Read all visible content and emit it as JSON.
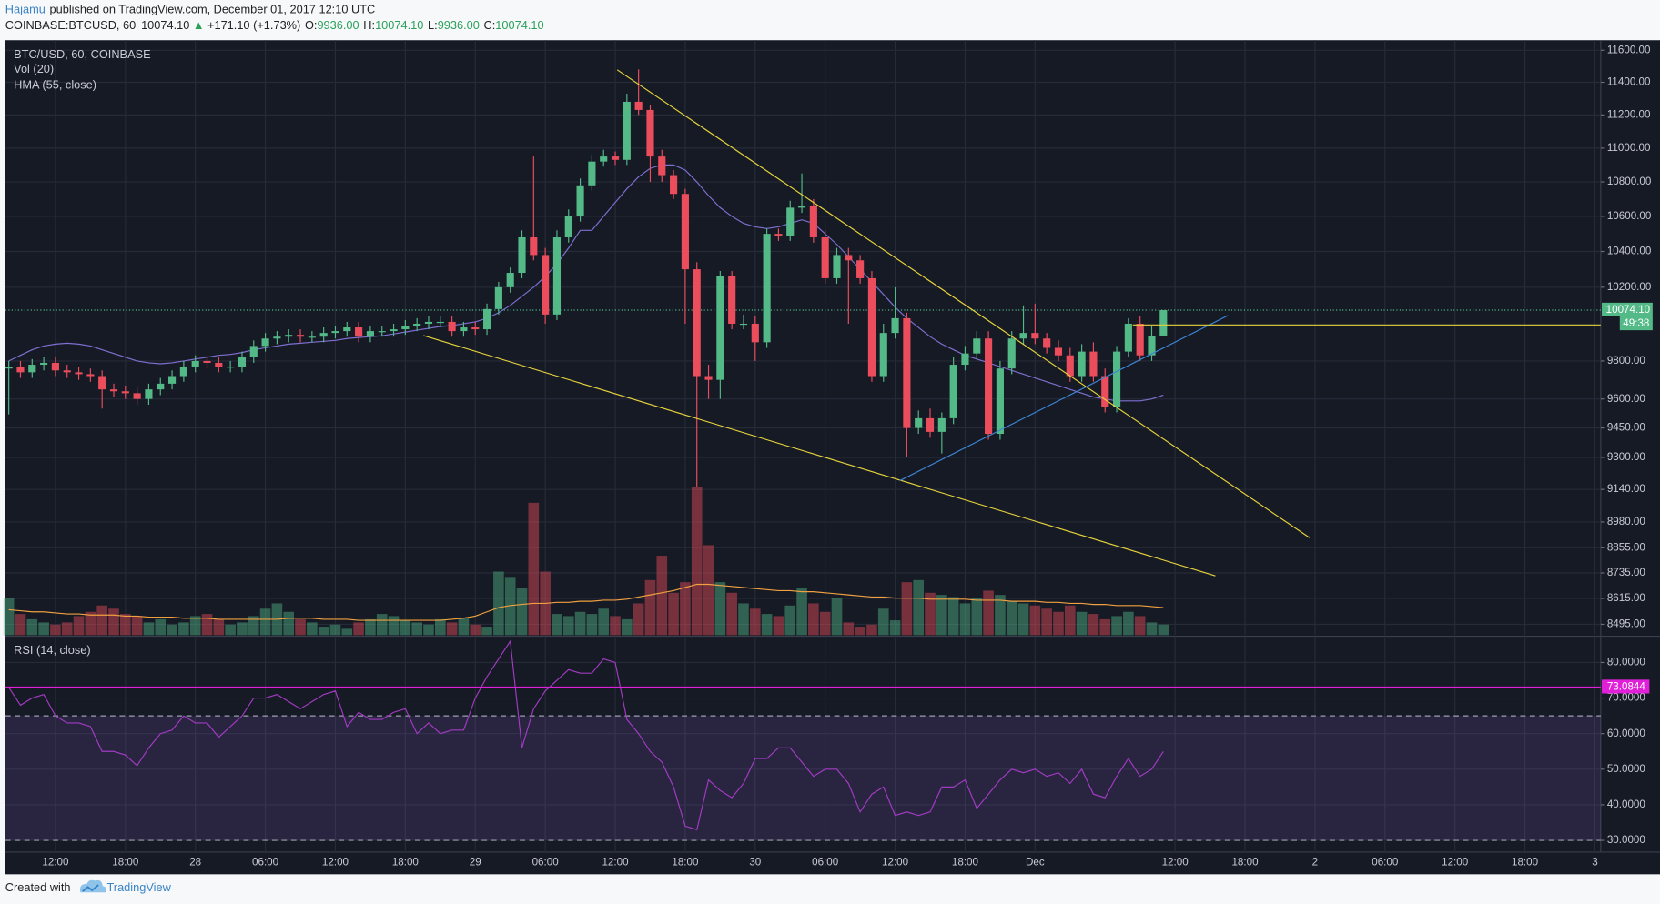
{
  "header": {
    "author": "Hajamu",
    "published": "published on TradingView.com, December 01, 2017 12:10 UTC"
  },
  "symbol_line": {
    "symbol": "COINBASE:BTCUSD, 60",
    "last": "10074.10",
    "arrow": "▲",
    "change": "+171.10 (+1.73%)",
    "open_label": "O:",
    "open": "9936.00",
    "high_label": "H:",
    "high": "10074.10",
    "low_label": "L:",
    "low": "9936.00",
    "close_label": "C:",
    "close": "10074.10"
  },
  "footer": {
    "created": "Created with",
    "brand": "TradingView"
  },
  "chart_data": [
    {
      "type": "candlestick",
      "title": "BTC/USD, 60, COINBASE",
      "log": true,
      "grid": true,
      "up_color": "#53b987",
      "down_color": "#eb4d5c",
      "x": [
        8,
        9,
        10,
        11,
        12,
        13,
        14,
        15,
        16,
        17,
        18,
        19,
        20,
        21,
        22,
        23,
        24,
        25,
        26,
        27,
        28,
        29,
        30,
        31,
        32,
        33,
        34,
        35,
        36,
        37,
        38,
        39,
        40,
        41,
        42,
        43,
        44,
        45,
        46,
        47,
        48,
        49,
        50,
        51,
        52,
        53,
        54,
        55,
        56,
        57,
        58,
        59,
        60,
        61,
        62,
        63,
        64,
        65,
        66,
        67,
        68,
        69,
        70,
        71,
        72,
        73,
        74,
        75,
        76,
        77,
        78,
        79,
        80,
        81,
        82,
        83,
        84,
        85,
        86,
        87,
        88,
        89,
        90,
        91,
        92,
        93,
        94,
        95,
        96,
        97,
        98,
        99,
        100,
        101,
        102,
        103,
        104,
        105,
        106,
        107
      ],
      "open": [
        9760,
        9770,
        9740,
        9780,
        9790,
        9750,
        9740,
        9730,
        9720,
        9650,
        9640,
        9630,
        9600,
        9650,
        9680,
        9720,
        9770,
        9800,
        9790,
        9770,
        9770,
        9820,
        9880,
        9920,
        9930,
        9940,
        9930,
        9930,
        9950,
        9960,
        9980,
        9930,
        9960,
        9960,
        9970,
        9990,
        10000,
        10010,
        10010,
        9960,
        9980,
        9970,
        10080,
        10200,
        10280,
        10480,
        10380,
        10050,
        10480,
        10600,
        10780,
        10920,
        10950,
        10930,
        11280,
        11230,
        10950,
        10840,
        10730,
        10300,
        9720,
        9700,
        10260,
        10000,
        10000,
        9900,
        10500,
        10490,
        10650,
        10660,
        10480,
        10250,
        10380,
        10350,
        10250,
        9720,
        9950,
        10030,
        9450,
        9500,
        9430,
        9500,
        9780,
        9840,
        9920,
        9420,
        9760,
        9920,
        9950,
        9920,
        9870,
        9830,
        9720,
        9850,
        9720,
        9560,
        9850,
        10000,
        9830,
        9936
      ],
      "high": [
        9800,
        9800,
        9810,
        9820,
        9820,
        9780,
        9770,
        9760,
        9750,
        9680,
        9670,
        9660,
        9680,
        9710,
        9750,
        9800,
        9830,
        9830,
        9820,
        9800,
        9850,
        9910,
        9950,
        9960,
        9970,
        9970,
        9960,
        9980,
        9990,
        10010,
        10010,
        9990,
        9990,
        10000,
        10020,
        10030,
        10040,
        10040,
        10040,
        10010,
        10010,
        10110,
        10230,
        10310,
        10520,
        10950,
        10420,
        10520,
        10640,
        10820,
        10960,
        10990,
        10980,
        11330,
        11480,
        11260,
        10990,
        10870,
        10760,
        10340,
        9780,
        10290,
        10290,
        10050,
        10040,
        10530,
        10530,
        10690,
        10850,
        10700,
        10520,
        10420,
        10420,
        10380,
        10290,
        10000,
        10200,
        10060,
        9540,
        9550,
        9530,
        9820,
        9880,
        9960,
        9960,
        9800,
        9960,
        10100,
        10110,
        9950,
        9910,
        9870,
        9890,
        9900,
        9760,
        9880,
        10030,
        10040,
        9990,
        10074.1
      ],
      "low": [
        9520,
        9710,
        9710,
        9750,
        9720,
        9710,
        9700,
        9690,
        9550,
        9610,
        9600,
        9570,
        9570,
        9620,
        9650,
        9690,
        9740,
        9760,
        9740,
        9740,
        9740,
        9790,
        9850,
        9890,
        9900,
        9900,
        9900,
        9900,
        9920,
        9930,
        9900,
        9900,
        9930,
        9930,
        9940,
        9960,
        9970,
        9980,
        9930,
        9930,
        9940,
        9940,
        10050,
        10170,
        10250,
        10350,
        10000,
        10020,
        10450,
        10570,
        10750,
        10890,
        10900,
        10900,
        11200,
        10800,
        10800,
        10700,
        10000,
        9150,
        9600,
        9600,
        9970,
        9970,
        9800,
        9870,
        10460,
        10460,
        10620,
        10450,
        10220,
        10220,
        10000,
        10220,
        9690,
        9690,
        9920,
        9300,
        9420,
        9400,
        9320,
        9470,
        9750,
        9810,
        9390,
        9390,
        9730,
        9890,
        9890,
        9840,
        9800,
        9690,
        9690,
        9690,
        9530,
        9530,
        9820,
        9800,
        9800,
        9936
      ],
      "close": [
        9770,
        9740,
        9780,
        9790,
        9750,
        9740,
        9730,
        9720,
        9650,
        9640,
        9630,
        9600,
        9650,
        9680,
        9720,
        9770,
        9800,
        9790,
        9770,
        9770,
        9820,
        9880,
        9920,
        9930,
        9940,
        9930,
        9930,
        9950,
        9960,
        9980,
        9930,
        9960,
        9960,
        9970,
        9990,
        10000,
        10010,
        10010,
        9960,
        9980,
        9970,
        10080,
        10200,
        10280,
        10480,
        10380,
        10050,
        10480,
        10600,
        10780,
        10920,
        10950,
        10930,
        11280,
        11230,
        10950,
        10840,
        10730,
        10300,
        9720,
        9700,
        10260,
        10000,
        10000,
        9900,
        10500,
        10490,
        10650,
        10660,
        10480,
        10250,
        10380,
        10350,
        10250,
        9720,
        9950,
        10030,
        9450,
        9500,
        9430,
        9500,
        9780,
        9840,
        9920,
        9420,
        9760,
        9920,
        9950,
        9920,
        9870,
        9830,
        9720,
        9850,
        9720,
        9560,
        9850,
        10000,
        9830,
        9936,
        10074.1
      ],
      "price_label": "10074.10",
      "countdown": "49:38",
      "series": [
        {
          "name": "HMA (55, close)",
          "color": "#7e6fd0",
          "values": [
            9800,
            9830,
            9860,
            9880,
            9890,
            9895,
            9890,
            9880,
            9860,
            9840,
            9820,
            9800,
            9790,
            9785,
            9790,
            9800,
            9810,
            9820,
            9830,
            9835,
            9845,
            9860,
            9870,
            9880,
            9890,
            9895,
            9900,
            9905,
            9910,
            9920,
            9925,
            9930,
            9935,
            9945,
            9955,
            9965,
            9975,
            9985,
            9990,
            10000,
            10010,
            10030,
            10060,
            10100,
            10150,
            10200,
            10260,
            10330,
            10420,
            10520,
            10520,
            10600,
            10680,
            10760,
            10830,
            10880,
            10900,
            10900,
            10870,
            10800,
            10720,
            10650,
            10600,
            10560,
            10540,
            10530,
            10540,
            10560,
            10580,
            10560,
            10500,
            10440,
            10370,
            10300,
            10230,
            10160,
            10090,
            10030,
            9980,
            9930,
            9890,
            9860,
            9830,
            9810,
            9790,
            9770,
            9750,
            9730,
            9710,
            9690,
            9670,
            9650,
            9630,
            9610,
            9600,
            9590,
            9590,
            9590,
            9600,
            9620
          ]
        }
      ],
      "ylim": [
        8450,
        11650
      ],
      "yticks": [
        {
          "value": 8495,
          "label": "8495.00"
        },
        {
          "value": 8615,
          "label": "8615.00"
        },
        {
          "value": 8735,
          "label": "8735.00"
        },
        {
          "value": 8855,
          "label": "8855.00"
        },
        {
          "value": 8980,
          "label": "8980.00"
        },
        {
          "value": 9140,
          "label": "9140.00"
        },
        {
          "value": 9300,
          "label": "9300.00"
        },
        {
          "value": 9450,
          "label": "9450.00"
        },
        {
          "value": 9600,
          "label": "9600.00"
        },
        {
          "value": 9800,
          "label": "9800.00"
        },
        {
          "value": 10200,
          "label": "10200.00"
        },
        {
          "value": 10400,
          "label": "10400.00"
        },
        {
          "value": 10600,
          "label": "10600.00"
        },
        {
          "value": 10800,
          "label": "10800.00"
        },
        {
          "value": 11000,
          "label": "11000.00"
        },
        {
          "value": 11200,
          "label": "11200.00"
        },
        {
          "value": 11400,
          "label": "11400.00"
        },
        {
          "value": 11600,
          "label": "11600.00"
        }
      ],
      "xlim": [
        7.7,
        144.5
      ],
      "xticks": [
        {
          "value": 12,
          "label": "12:00"
        },
        {
          "value": 18,
          "label": "18:00"
        },
        {
          "value": 24,
          "label": "28"
        },
        {
          "value": 30,
          "label": "06:00"
        },
        {
          "value": 36,
          "label": "12:00"
        },
        {
          "value": 42,
          "label": "18:00"
        },
        {
          "value": 48,
          "label": "29"
        },
        {
          "value": 54,
          "label": "06:00"
        },
        {
          "value": 60,
          "label": "12:00"
        },
        {
          "value": 66,
          "label": "18:00"
        },
        {
          "value": 72,
          "label": "30"
        },
        {
          "value": 78,
          "label": "06:00"
        },
        {
          "value": 84,
          "label": "12:00"
        },
        {
          "value": 90,
          "label": "18:00"
        },
        {
          "value": 96,
          "label": "Dec"
        },
        {
          "value": 108,
          "label": "12:00"
        },
        {
          "value": 114,
          "label": "18:00"
        },
        {
          "value": 120,
          "label": "2"
        },
        {
          "value": 126,
          "label": "06:00"
        },
        {
          "value": 132,
          "label": "12:00"
        },
        {
          "value": 138,
          "label": "18:00"
        },
        {
          "value": 144,
          "label": "3"
        }
      ]
    },
    {
      "type": "bar",
      "title": "Vol (20)",
      "ma_color": "#f0a040",
      "ylim": [
        0,
        150
      ],
      "values": [
        35,
        20,
        15,
        12,
        10,
        12,
        18,
        22,
        28,
        25,
        20,
        18,
        12,
        15,
        10,
        12,
        18,
        20,
        15,
        10,
        12,
        18,
        25,
        30,
        22,
        15,
        12,
        8,
        10,
        6,
        12,
        15,
        20,
        18,
        14,
        12,
        10,
        15,
        12,
        16,
        10,
        8,
        60,
        55,
        45,
        125,
        60,
        20,
        18,
        22,
        20,
        25,
        18,
        15,
        30,
        52,
        75,
        40,
        50,
        140,
        85,
        50,
        40,
        30,
        25,
        20,
        18,
        28,
        45,
        30,
        22,
        35,
        12,
        8,
        10,
        25,
        14,
        50,
        52,
        40,
        38,
        36,
        30,
        35,
        42,
        38,
        32,
        30,
        28,
        25,
        22,
        28,
        22,
        20,
        15,
        18,
        22,
        18,
        12,
        10
      ],
      "ma": [
        24,
        23,
        22,
        22,
        21,
        20,
        20,
        19,
        19,
        19,
        18,
        18,
        17,
        17,
        17,
        16,
        16,
        16,
        15,
        15,
        15,
        15,
        15,
        15,
        16,
        16,
        16,
        15,
        15,
        15,
        14,
        14,
        14,
        14,
        14,
        14,
        14,
        14,
        15,
        16,
        18,
        22,
        26,
        28,
        29,
        30,
        30,
        31,
        31,
        32,
        32,
        33,
        33,
        34,
        36,
        38,
        40,
        42,
        45,
        48,
        48,
        47,
        46,
        45,
        44,
        43,
        42,
        42,
        41,
        41,
        40,
        39,
        38,
        37,
        36,
        36,
        35,
        35,
        35,
        34,
        34,
        34,
        34,
        33,
        33,
        33,
        32,
        32,
        32,
        31,
        31,
        30,
        30,
        29,
        29,
        28,
        28,
        28,
        27,
        26
      ]
    },
    {
      "type": "line",
      "title": "RSI (14, close)",
      "color": "#a23bc2",
      "band_color": "#7e57c2",
      "hline": 73.0844,
      "hline_color": "#e020d8",
      "bands": [
        30,
        65
      ],
      "values": [
        73,
        68,
        70,
        71,
        65,
        63,
        63,
        62,
        55,
        55,
        54,
        51,
        56,
        60,
        61,
        65,
        63,
        63,
        59,
        62,
        65,
        70,
        70,
        71,
        69,
        67,
        69,
        71,
        72,
        62,
        66,
        64,
        64,
        66,
        67,
        60,
        63,
        60,
        61,
        61,
        70,
        76,
        81,
        86,
        56,
        67,
        72,
        75,
        78,
        77,
        77,
        81,
        80,
        64,
        60,
        55,
        52,
        45,
        34,
        33,
        47,
        44,
        42,
        46,
        53,
        53,
        56,
        56,
        52,
        48,
        50,
        50,
        46,
        38,
        43,
        45,
        37,
        38,
        37,
        38,
        45,
        45,
        47,
        39,
        43,
        47,
        50,
        49,
        50,
        48,
        49,
        46,
        50,
        43,
        42,
        48,
        53,
        48,
        50,
        55
      ],
      "ylim": [
        26.7,
        87.1
      ],
      "yticks": [
        {
          "value": 30,
          "label": "30.0000"
        },
        {
          "value": 40,
          "label": "40.0000"
        },
        {
          "value": 50,
          "label": "50.0000"
        },
        {
          "value": 60,
          "label": "60.0000"
        },
        {
          "value": 70,
          "label": "70.0000"
        },
        {
          "value": 80,
          "label": "80.0000"
        }
      ]
    }
  ]
}
